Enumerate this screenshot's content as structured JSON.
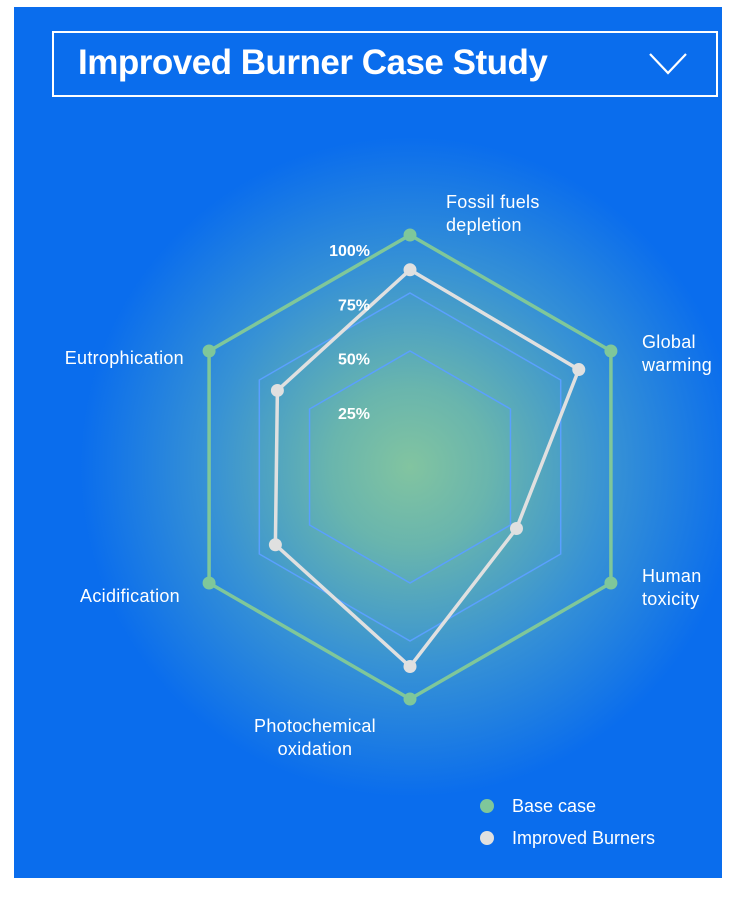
{
  "header": {
    "title": "Improved Burner Case Study",
    "dropdown_icon": "chevron-down-icon"
  },
  "colors": {
    "background": "#0a6ded",
    "base_case": "#7fc79a",
    "improved": "#e0e0e0",
    "grid": "#5aa0ff"
  },
  "chart_data": {
    "type": "radar",
    "axes": [
      "Fossil fuels depletion",
      "Global warming",
      "Human toxicity",
      "Photochemical oxidation",
      "Acidification",
      "Eutrophication"
    ],
    "axis_label_lines": [
      [
        "Fossil fuels",
        "depletion"
      ],
      [
        "Global",
        "warming"
      ],
      [
        "Human",
        "toxicity"
      ],
      [
        "Photochemical",
        "oxidation"
      ],
      [
        "Acidification"
      ],
      [
        "Eutrophication"
      ]
    ],
    "radial_ticks": [
      "25%",
      "50%",
      "75%",
      "100%"
    ],
    "range": [
      0,
      100
    ],
    "unit": "%",
    "series": [
      {
        "name": "Base case",
        "values": [
          100,
          100,
          100,
          100,
          100,
          100
        ]
      },
      {
        "name": "Improved Burners",
        "values": [
          85,
          84,
          53,
          86,
          67,
          66
        ]
      }
    ],
    "legend_position": "bottom-right"
  }
}
